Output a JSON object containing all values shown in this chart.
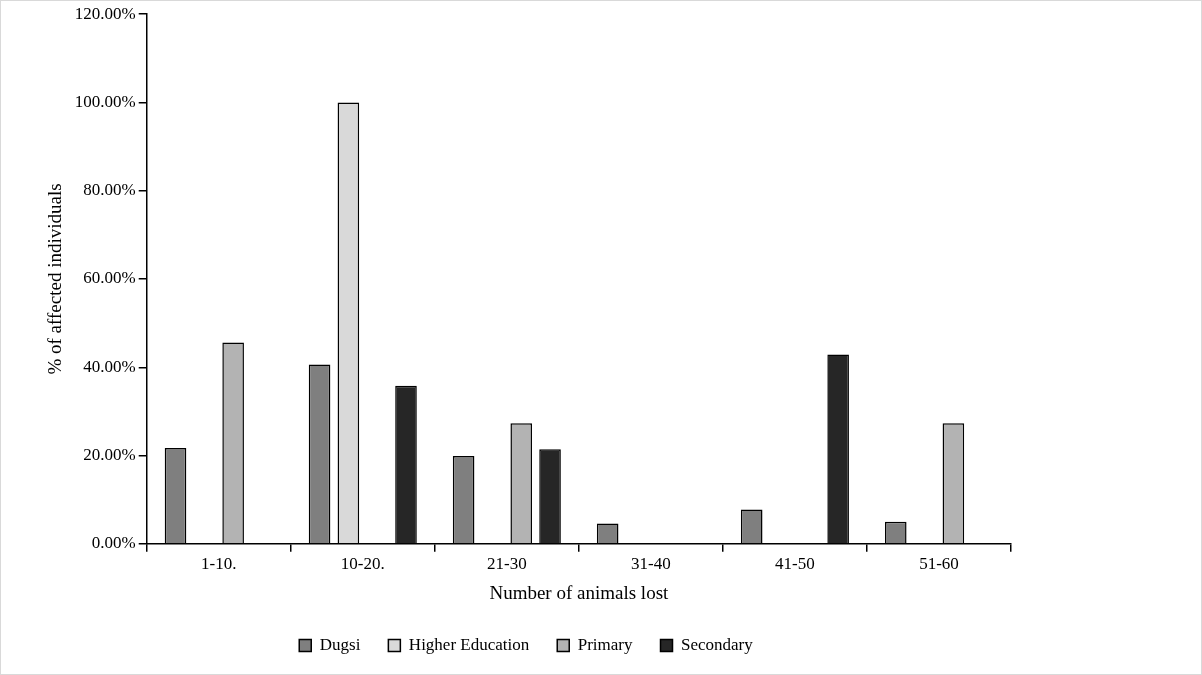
{
  "chart_data": {
    "type": "bar",
    "xlabel": "Number of animals lost",
    "ylabel": "% of affected individuals",
    "categories": [
      "1-10.",
      "10-20.",
      "21-30",
      "31-40",
      "41-50",
      "51-60"
    ],
    "series": [
      {
        "name": "Dugsi",
        "color": "#7f7f7f",
        "values": [
          21.7,
          40.6,
          19.9,
          4.6,
          7.8,
          5.0
        ]
      },
      {
        "name": "Higher Education",
        "color": "#d9d9d9",
        "values": [
          null,
          100,
          null,
          null,
          null,
          null
        ]
      },
      {
        "name": "Primary",
        "color": "#b3b3b3",
        "values": [
          45.6,
          null,
          27.3,
          null,
          null,
          27.3
        ]
      },
      {
        "name": "Secondary",
        "color": "#262626",
        "values": [
          null,
          35.8,
          21.4,
          null,
          42.9,
          null
        ]
      }
    ],
    "ylim": [
      0,
      120
    ],
    "yticks": [
      {
        "value": 0,
        "label": "0.00%"
      },
      {
        "value": 20,
        "label": "20.00%"
      },
      {
        "value": 40,
        "label": "40.00%"
      },
      {
        "value": 60,
        "label": "60.00%"
      },
      {
        "value": 80,
        "label": "80.00%"
      },
      {
        "value": 100,
        "label": "100.00%"
      },
      {
        "value": 120,
        "label": "120.00%"
      }
    ],
    "grid": false,
    "legend": "bottom"
  }
}
